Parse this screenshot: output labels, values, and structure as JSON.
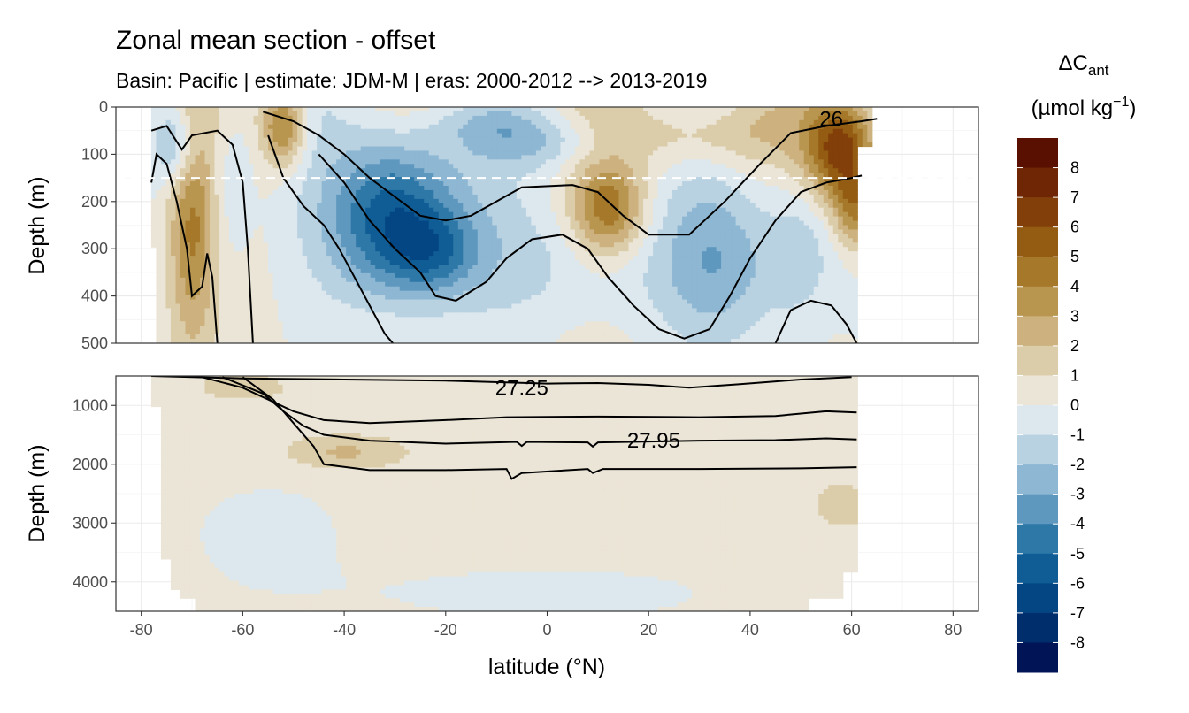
{
  "title": "Zonal mean section - offset",
  "subtitle": "Basin: Pacific | estimate: JDM-M | eras: 2000-2012 --> 2013-2019",
  "chart_data": {
    "type": "heatmap",
    "x_axis": {
      "label": "latitude (°N)",
      "range": [
        -85,
        85
      ],
      "ticks": [
        -80,
        -60,
        -40,
        -20,
        0,
        20,
        40,
        60,
        80
      ],
      "tick_labels": [
        "-80",
        "-60",
        "-40",
        "-20",
        "0",
        "20",
        "40",
        "60",
        "80"
      ]
    },
    "panels": [
      {
        "name": "upper",
        "ylabel": "Depth (m)",
        "ylim": [
          0,
          500
        ],
        "yticks": [
          0,
          100,
          200,
          300,
          400,
          500
        ],
        "ytick_labels": [
          "0",
          "100",
          "200",
          "300",
          "400",
          "500"
        ],
        "reference_depth": 150,
        "contour_labels": [
          {
            "text": "26",
            "lat": 56,
            "depth": 25
          }
        ]
      },
      {
        "name": "lower",
        "ylabel": "Depth (m)",
        "ylim": [
          500,
          4500
        ],
        "yticks": [
          1000,
          2000,
          3000,
          4000
        ],
        "ytick_labels": [
          "1000",
          "2000",
          "3000",
          "4000"
        ],
        "contour_labels": [
          {
            "text": "27.25",
            "lat": -5,
            "depth": 700
          },
          {
            "text": "27.95",
            "lat": 21,
            "depth": 1600
          }
        ]
      }
    ],
    "legend": {
      "title_main": "ΔC",
      "title_sub": "ant",
      "units_pre": "(µmol kg",
      "units_sup": "−1",
      "units_post": ")",
      "placement": "right",
      "labels": [
        "8",
        "7",
        "6",
        "5",
        "4",
        "3",
        "2",
        "1",
        "0",
        "-1",
        "-2",
        "-3",
        "-4",
        "-5",
        "-6",
        "-7",
        "-8"
      ],
      "colors": [
        "#5a1000",
        "#6e2604",
        "#823f09",
        "#935c12",
        "#a5782a",
        "#b99650",
        "#cdb27f",
        "#dccdaa",
        "#ebe5d7",
        "#dde8ee",
        "#b9d2e2",
        "#8eb7d3",
        "#5f98bf",
        "#2e78a8",
        "#105d96",
        "#044683",
        "#002d6c",
        "#001456"
      ]
    }
  }
}
